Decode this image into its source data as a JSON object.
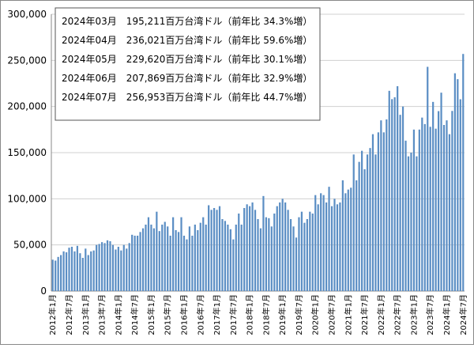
{
  "chart_data": {
    "type": "bar",
    "annotations": [
      "2024年03月　195,211百万台湾ドル（前年比 34.3%増）",
      "2024年04月　236,021百万台湾ドル（前年比 59.6%増）",
      "2024年05月　229,620百万台湾ドル（前年比 30.1%増）",
      "2024年06月　207,869百万台湾ドル（前年比 32.9%増）",
      "2024年07月　256,953百万台湾ドル（前年比 44.7%増）"
    ],
    "categories": [
      "2012年1月",
      null,
      null,
      null,
      null,
      null,
      "2012年7月",
      null,
      null,
      null,
      null,
      null,
      "2013年1月",
      null,
      null,
      null,
      null,
      null,
      "2013年7月",
      null,
      null,
      null,
      null,
      null,
      "2014年1月",
      null,
      null,
      null,
      null,
      null,
      "2014年7月",
      null,
      null,
      null,
      null,
      null,
      "2015年1月",
      null,
      null,
      null,
      null,
      null,
      "2015年7月",
      null,
      null,
      null,
      null,
      null,
      "2016年1月",
      null,
      null,
      null,
      null,
      null,
      "2016年7月",
      null,
      null,
      null,
      null,
      null,
      "2017年1月",
      null,
      null,
      null,
      null,
      null,
      "2017年7月",
      null,
      null,
      null,
      null,
      null,
      "2018年1月",
      null,
      null,
      null,
      null,
      null,
      "2018年7月",
      null,
      null,
      null,
      null,
      null,
      "2019年1月",
      null,
      null,
      null,
      null,
      null,
      "2019年7月",
      null,
      null,
      null,
      null,
      null,
      "2020年1月",
      null,
      null,
      null,
      null,
      null,
      "2020年7月",
      null,
      null,
      null,
      null,
      null,
      "2021年1月",
      null,
      null,
      null,
      null,
      null,
      "2021年7月",
      null,
      null,
      null,
      null,
      null,
      "2022年1月",
      null,
      null,
      null,
      null,
      null,
      "2022年7月",
      null,
      null,
      null,
      null,
      null,
      "2023年1月",
      null,
      null,
      null,
      null,
      null,
      "2023年7月",
      null,
      null,
      null,
      null,
      null,
      "2024年1月",
      null,
      null,
      null,
      null,
      null,
      "2024年7月"
    ],
    "values": [
      34000,
      33000,
      37000,
      39000,
      43000,
      42000,
      47000,
      48000,
      43000,
      49000,
      41000,
      36000,
      46000,
      39000,
      43000,
      44000,
      50000,
      51000,
      53000,
      52000,
      55000,
      54000,
      50000,
      45000,
      48000,
      44000,
      50000,
      46000,
      52000,
      61000,
      60000,
      60000,
      64000,
      68000,
      72000,
      80000,
      72000,
      68000,
      86000,
      65000,
      72000,
      75000,
      70000,
      60000,
      80000,
      66000,
      64000,
      80000,
      60000,
      56000,
      70000,
      60000,
      72000,
      66000,
      74000,
      80000,
      72000,
      93000,
      88000,
      90000,
      88000,
      92000,
      78000,
      76000,
      72000,
      67000,
      56000,
      72000,
      84000,
      72000,
      90000,
      94000,
      92000,
      96000,
      88000,
      78000,
      68000,
      103000,
      80000,
      79000,
      70000,
      84000,
      92000,
      96000,
      100000,
      96000,
      88000,
      78000,
      70000,
      58000,
      80000,
      86000,
      74000,
      78000,
      86000,
      84000,
      104000,
      94000,
      106000,
      104000,
      96000,
      113000,
      92000,
      100000,
      94000,
      96000,
      120000,
      106000,
      110000,
      112000,
      148000,
      120000,
      140000,
      152000,
      132000,
      148000,
      155000,
      170000,
      148000,
      172000,
      185000,
      172000,
      186000,
      217000,
      208000,
      210000,
      222000,
      191000,
      200000,
      163000,
      146000,
      150000,
      175000,
      146000,
      175000,
      188000,
      181000,
      243000,
      178000,
      205000,
      176000,
      195000,
      215000,
      180000,
      185000,
      170000,
      195211,
      236021,
      229620,
      207869,
      256953
    ],
    "color": "#5b8ec4",
    "ylim": [
      0,
      300000
    ],
    "yticks": [
      0,
      {
        "value": 50000,
        "label": "50,000"
      },
      {
        "value": 100000,
        "label": "100,000"
      },
      {
        "value": 150000,
        "label": "150,000"
      },
      {
        "value": 200000,
        "label": "200,000"
      },
      {
        "value": 250000,
        "label": "250,000"
      },
      {
        "value": 300000,
        "label": "300,000"
      }
    ],
    "grid": true
  }
}
